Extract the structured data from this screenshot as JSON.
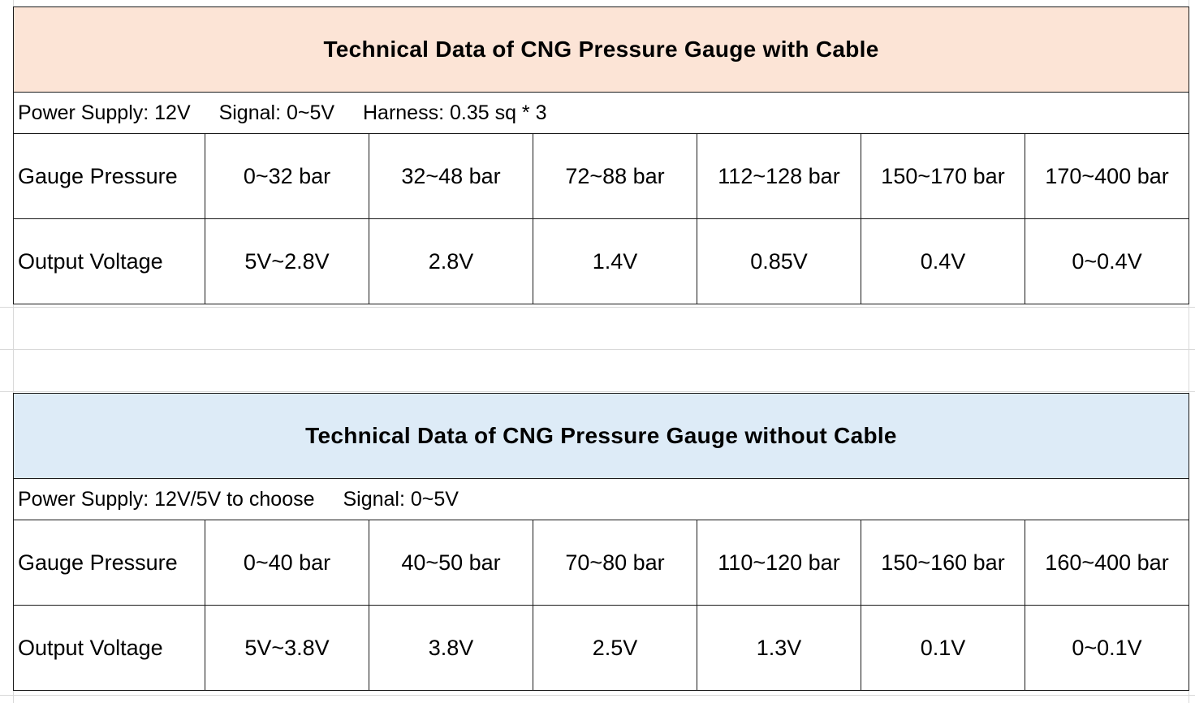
{
  "tables": [
    {
      "title": "Technical Data of CNG Pressure Gauge with Cable",
      "specs": [
        "Power Supply: 12V",
        "Signal: 0~5V",
        "Harness: 0.35 sq * 3"
      ],
      "pressure_label": "Gauge Pressure",
      "pressures": [
        "0~32 bar",
        "32~48 bar",
        "72~88 bar",
        "112~128 bar",
        "150~170 bar",
        "170~400 bar"
      ],
      "voltage_label": "Output Voltage",
      "voltages": [
        "5V~2.8V",
        "2.8V",
        "1.4V",
        "0.85V",
        "0.4V",
        "0~0.4V"
      ],
      "header_color": "#fce4d6"
    },
    {
      "title": "Technical Data of CNG Pressure Gauge without Cable",
      "specs": [
        "Power Supply: 12V/5V to choose",
        "Signal: 0~5V"
      ],
      "pressure_label": "Gauge Pressure",
      "pressures": [
        "0~40 bar",
        "40~50 bar",
        "70~80 bar",
        "110~120 bar",
        "150~160 bar",
        "160~400 bar"
      ],
      "voltage_label": "Output Voltage",
      "voltages": [
        "5V~3.8V",
        "3.8V",
        "2.5V",
        "1.3V",
        "0.1V",
        "0~0.1V"
      ],
      "header_color": "#ddebf7"
    }
  ]
}
